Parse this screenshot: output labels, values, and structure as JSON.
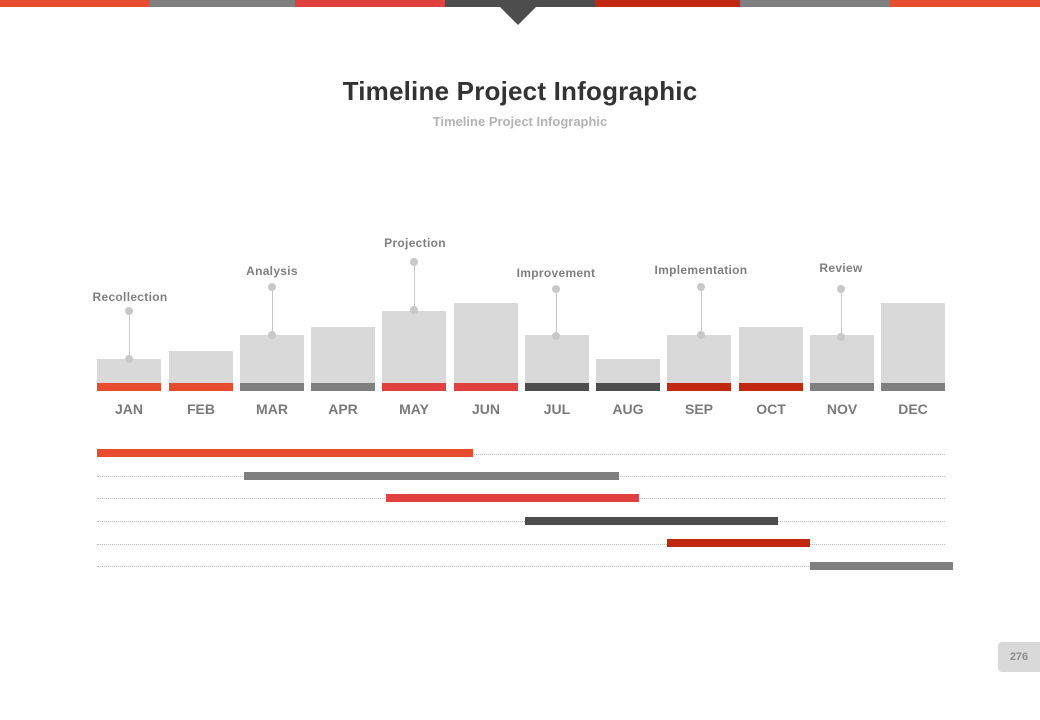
{
  "header": {
    "colors": [
      "#e84c2f",
      "#7f7f7f",
      "#e0403f",
      "#4d4d4d",
      "#c0290f",
      "#7f7f7f",
      "#e84c2f"
    ]
  },
  "title": "Timeline Project  Infographic",
  "subtitle": "Timeline Project  Infographic",
  "months": [
    {
      "label": "JAN",
      "color": "#e84c2f"
    },
    {
      "label": "FEB",
      "color": "#e84c2f"
    },
    {
      "label": "MAR",
      "color": "#7f7f7f"
    },
    {
      "label": "APR",
      "color": "#7f7f7f"
    },
    {
      "label": "MAY",
      "color": "#e0403f"
    },
    {
      "label": "JUN",
      "color": "#e0403f"
    },
    {
      "label": "JUL",
      "color": "#4d4d4d"
    },
    {
      "label": "AUG",
      "color": "#4d4d4d"
    },
    {
      "label": "SEP",
      "color": "#c0290f"
    },
    {
      "label": "OCT",
      "color": "#c0290f"
    },
    {
      "label": "NOV",
      "color": "#7f7f7f"
    },
    {
      "label": "DEC",
      "color": "#7f7f7f"
    }
  ],
  "phases": [
    {
      "label": "Recollection",
      "color": "#e84c2f"
    },
    {
      "label": "Analysis",
      "color": "#7f7f7f"
    },
    {
      "label": "Projection",
      "color": "#e0403f"
    },
    {
      "label": "Improvement",
      "color": "#4d4d4d"
    },
    {
      "label": "Implementation",
      "color": "#c0290f"
    },
    {
      "label": "Review",
      "color": "#7f7f7f"
    }
  ],
  "page_number": "276"
}
